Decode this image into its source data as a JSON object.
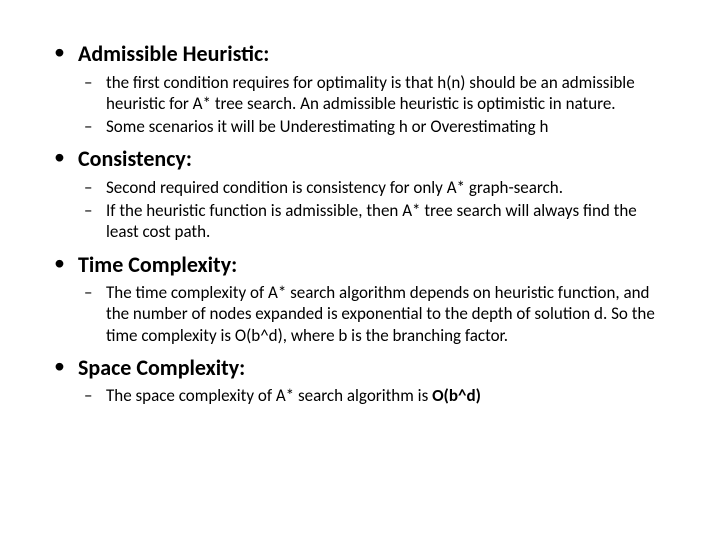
{
  "sections": [
    {
      "heading": "Admissible Heuristic:",
      "items": [
        "the first condition requires for optimality is that h(n) should be an admissible heuristic for A* tree search. An admissible heuristic is optimistic in nature.",
        "Some scenarios it will be Underestimating h or Overestimating h"
      ]
    },
    {
      "heading": "Consistency:",
      "items": [
        "Second required condition is consistency for only A* graph-search.",
        "If the heuristic function is admissible, then A* tree search will always find the least cost path."
      ]
    },
    {
      "heading": "Time Complexity:",
      "items": [
        "The time complexity of A* search algorithm depends on heuristic function, and the number of nodes expanded is exponential to the depth of solution d. So the time complexity is O(b^d), where b is the branching factor."
      ]
    },
    {
      "heading": "Space Complexity:",
      "items": [
        "The space complexity of A* search algorithm is O(b^d)"
      ]
    }
  ],
  "bold_fragment": "O(b^d)",
  "bold_section_index": 3,
  "bold_item_index": 0,
  "colors": {
    "text": "#000000",
    "background": "#ffffff"
  },
  "fonts": {
    "heading_size": 22,
    "body_size": 17,
    "family": "Calibri"
  }
}
